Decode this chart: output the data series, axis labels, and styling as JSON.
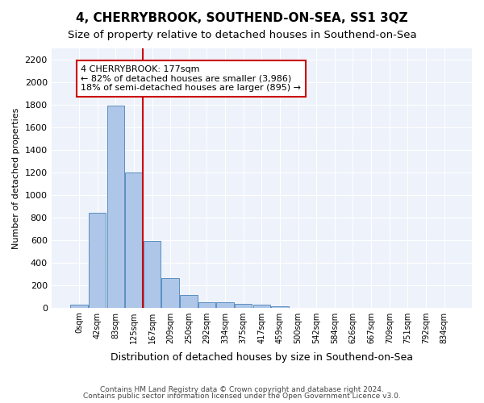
{
  "title": "4, CHERRYBROOK, SOUTHEND-ON-SEA, SS1 3QZ",
  "subtitle": "Size of property relative to detached houses in Southend-on-Sea",
  "xlabel": "Distribution of detached houses by size in Southend-on-Sea",
  "ylabel": "Number of detached properties",
  "bin_labels": [
    "0sqm",
    "42sqm",
    "83sqm",
    "125sqm",
    "167sqm",
    "209sqm",
    "250sqm",
    "292sqm",
    "334sqm",
    "375sqm",
    "417sqm",
    "459sqm",
    "500sqm",
    "542sqm",
    "584sqm",
    "626sqm",
    "667sqm",
    "709sqm",
    "751sqm",
    "792sqm",
    "834sqm"
  ],
  "bar_values": [
    25,
    840,
    1790,
    1200,
    590,
    260,
    115,
    50,
    48,
    33,
    27,
    15,
    0,
    0,
    0,
    0,
    0,
    0,
    0,
    0,
    0
  ],
  "bar_color": "#aec6e8",
  "bar_edgecolor": "#5a8fc0",
  "vline_x_index": 4,
  "annotation_text": "4 CHERRYBROOK: 177sqm\n← 82% of detached houses are smaller (3,986)\n18% of semi-detached houses are larger (895) →",
  "annotation_box_color": "#ffffff",
  "annotation_box_edgecolor": "#cc0000",
  "vline_color": "#cc0000",
  "footer1": "Contains HM Land Registry data © Crown copyright and database right 2024.",
  "footer2": "Contains public sector information licensed under the Open Government Licence v3.0.",
  "ylim": [
    0,
    2300
  ],
  "yticks": [
    0,
    200,
    400,
    600,
    800,
    1000,
    1200,
    1400,
    1600,
    1800,
    2000,
    2200
  ],
  "background_color": "#eef2fa",
  "grid_color": "#ffffff",
  "title_fontsize": 11,
  "subtitle_fontsize": 9.5
}
